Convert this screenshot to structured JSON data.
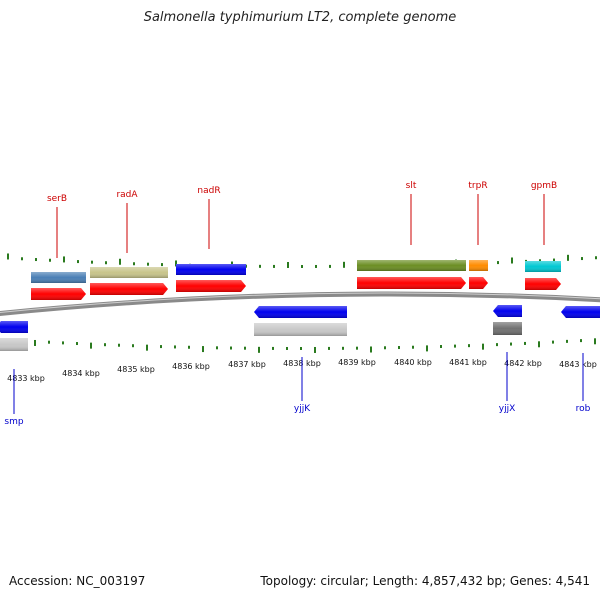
{
  "title": "Salmonella typhimurium LT2, complete genome",
  "footer": {
    "accession": "Accession: NC_003197",
    "summary": "Topology: circular; Length: 4,857,432 bp; Genes: 4,541"
  },
  "colors": {
    "backbone": "#8a8a8a",
    "tick": "#2a7a1e",
    "forward_label": "#cc0000",
    "reverse_label": "#0000cc",
    "cds": "#ff0000"
  },
  "scale_labels": [
    "4833 kbp",
    "4834 kbp",
    "4835 kbp",
    "4836 kbp",
    "4837 kbp",
    "4838 kbp",
    "4839 kbp",
    "4840 kbp",
    "4841 kbp",
    "4842 kbp",
    "4843 kbp"
  ],
  "forward_genes": [
    {
      "name": "serB",
      "color": "#4a7fb5"
    },
    {
      "name": "radA",
      "color": "#c8c48a"
    },
    {
      "name": "nadR",
      "color": "#0000ee"
    },
    {
      "name": "slt",
      "color": "#6b8e23"
    },
    {
      "name": "trpR",
      "color": "#ff8c00"
    },
    {
      "name": "gpmB",
      "color": "#00c8d2"
    }
  ],
  "reverse_genes": [
    {
      "name": "smp",
      "color": "#c8c8c8"
    },
    {
      "name": "yjjK",
      "color": "#c8c8c8"
    },
    {
      "name": "yjjX",
      "color": "#707070"
    },
    {
      "name": "rob",
      "color": "#0000ee"
    }
  ]
}
